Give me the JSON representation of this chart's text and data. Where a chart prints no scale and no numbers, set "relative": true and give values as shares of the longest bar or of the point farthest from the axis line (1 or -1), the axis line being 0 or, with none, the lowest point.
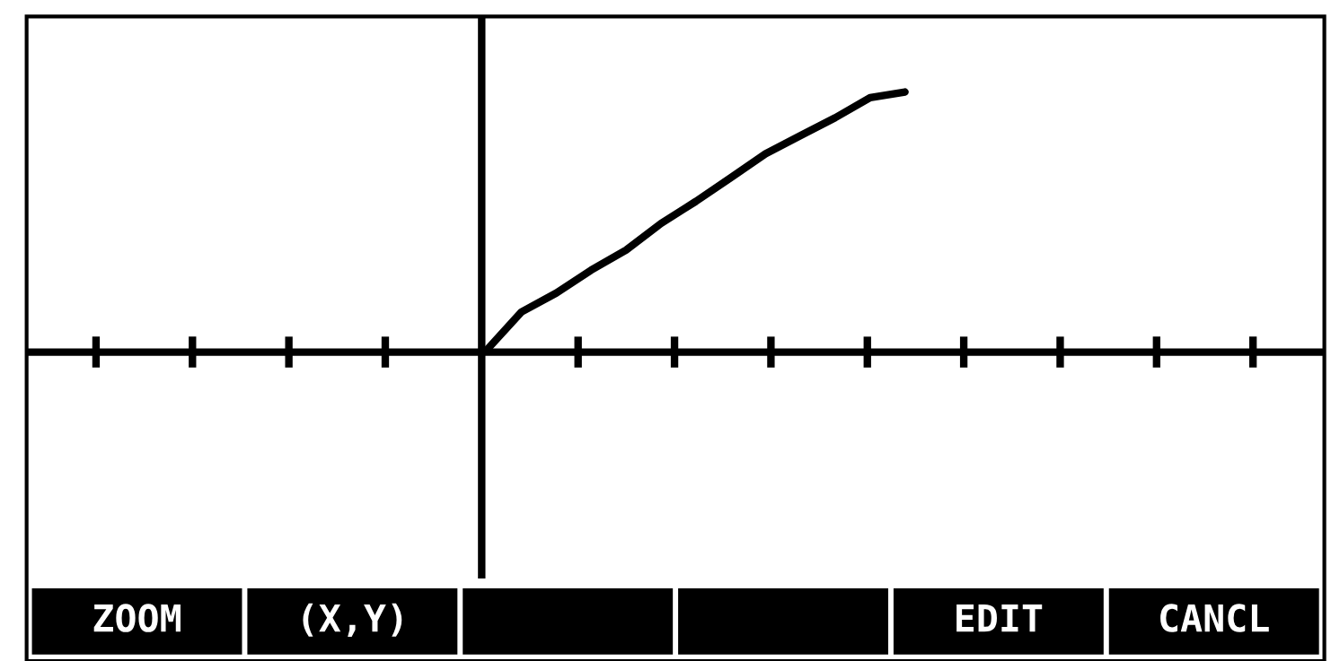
{
  "chart_data": {
    "type": "line",
    "relative": true,
    "categories": [
      null,
      null,
      null,
      null,
      null,
      null,
      null,
      null,
      null,
      null,
      null,
      null,
      null
    ],
    "series": [
      {
        "color": "#000000",
        "values": [
          0.007,
          0.154,
          0.227,
          0.315,
          0.392,
          0.494,
          0.579,
          0.67,
          0.762,
          0.832,
          0.901,
          0.978,
          1
        ]
      }
    ],
    "grid": false,
    "legend": false,
    "marker": "none",
    "line_style": "solid",
    "annotations": [
      "ZOOM",
      "(X,Y)",
      "EDIT",
      "CANCL"
    ]
  }
}
